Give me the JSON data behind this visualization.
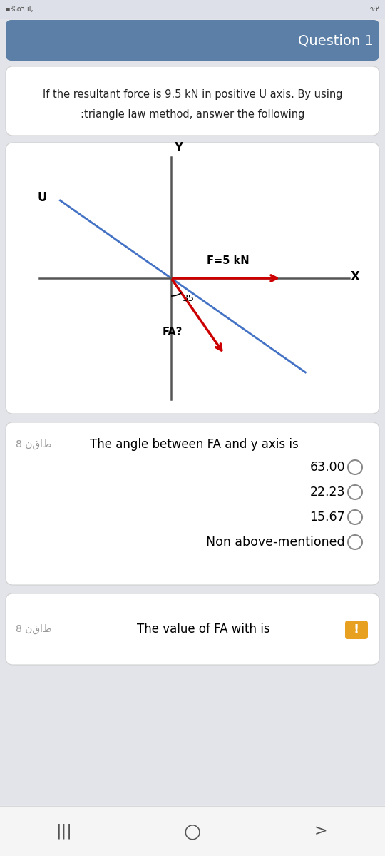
{
  "bg_color": "#e2e4ea",
  "card_color": "#ffffff",
  "header_bg": "#5b7fa6",
  "header_text": "Question 1",
  "header_text_color": "#ffffff",
  "question_line1": "If the resultant force is 9.5 kN in positive U axis. By using",
  "question_line2": ":triangle law method, answer the following",
  "diagram_bg": "#ffffff",
  "axis_color": "#333333",
  "F_arrow_color": "#cc0000",
  "U_line_color": "#4472c4",
  "angle_label": "35",
  "F_label": "F=5 kN",
  "FA_label": "FA?",
  "X_label": "X",
  "Y_label": "Y",
  "U_label": "U",
  "q1_points": "8 نقاط",
  "q1_text": "The angle between FA and y axis is",
  "options": [
    "63.00",
    "22.23",
    "15.67",
    "Non above-mentioned"
  ],
  "q2_points": "8 نقاط",
  "q2_text": "The value of FA with is",
  "status_bar_color": "#dde0e8"
}
